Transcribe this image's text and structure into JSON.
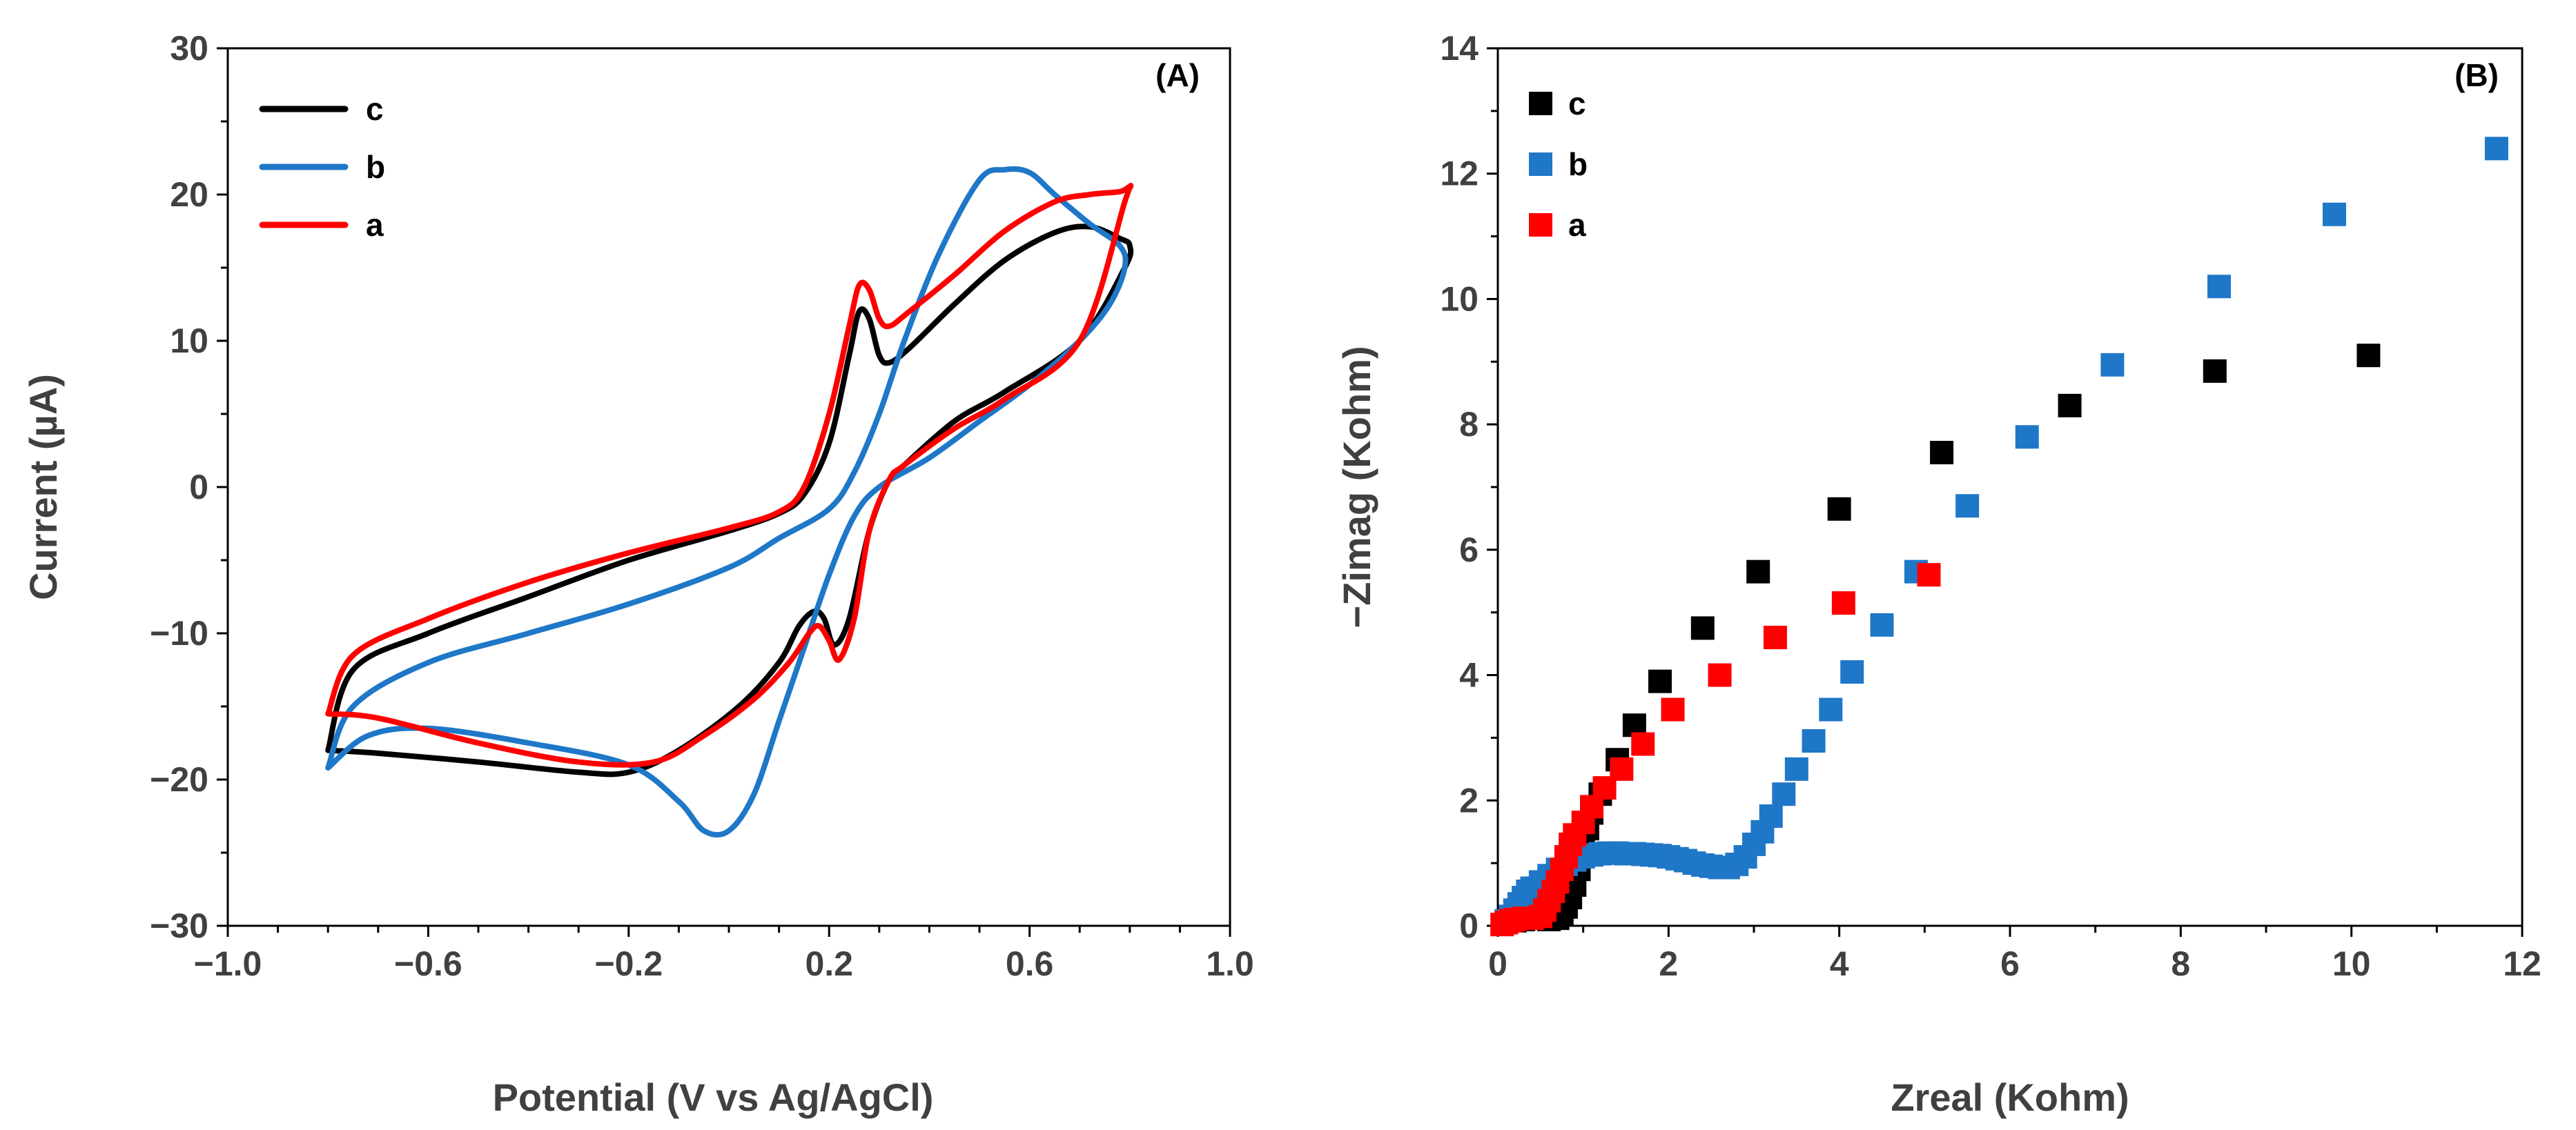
{
  "chart_data": [
    {
      "type": "line",
      "panel_label": "(A)",
      "xlabel": "Potential  (V vs Ag/AgCl)",
      "ylabel": "Current (µA)",
      "xlim": [
        -1.0,
        1.0
      ],
      "ylim": [
        -30,
        30
      ],
      "x_ticks": [
        -1.0,
        -0.6,
        -0.2,
        0.2,
        0.6,
        1.0
      ],
      "x_tick_labels": [
        "−1.0",
        "−0.6",
        "−0.2",
        "0.2",
        "0.6",
        "1.0"
      ],
      "y_ticks": [
        -30,
        -20,
        -10,
        0,
        10,
        20,
        30
      ],
      "y_tick_labels": [
        "−30",
        "−20",
        "−10",
        "0",
        "10",
        "20",
        "30"
      ],
      "grid": false,
      "legend": "top-left",
      "series": [
        {
          "name": "c",
          "color": "#000000",
          "closed": true,
          "points": [
            [
              -0.8,
              -18
            ],
            [
              -0.75,
              -12.5
            ],
            [
              -0.6,
              -10
            ],
            [
              -0.4,
              -7.5
            ],
            [
              -0.2,
              -5
            ],
            [
              0,
              -3
            ],
            [
              0.1,
              -1.8
            ],
            [
              0.15,
              -0.5
            ],
            [
              0.2,
              3
            ],
            [
              0.24,
              9
            ],
            [
              0.26,
              12
            ],
            [
              0.28,
              11.5
            ],
            [
              0.3,
              9
            ],
            [
              0.32,
              8.5
            ],
            [
              0.36,
              9.5
            ],
            [
              0.45,
              12.5
            ],
            [
              0.55,
              15.5
            ],
            [
              0.65,
              17.4
            ],
            [
              0.72,
              17.8
            ],
            [
              0.78,
              17
            ],
            [
              0.8,
              16.5
            ],
            [
              0.79,
              15
            ],
            [
              0.7,
              10
            ],
            [
              0.55,
              6.5
            ],
            [
              0.45,
              4.5
            ],
            [
              0.35,
              1.5
            ],
            [
              0.32,
              0.5
            ],
            [
              0.28,
              -3
            ],
            [
              0.24,
              -9
            ],
            [
              0.21,
              -10.8
            ],
            [
              0.19,
              -9
            ],
            [
              0.17,
              -8.5
            ],
            [
              0.14,
              -9.5
            ],
            [
              0.1,
              -12
            ],
            [
              0.02,
              -15
            ],
            [
              -0.1,
              -18
            ],
            [
              -0.2,
              -19.5
            ],
            [
              -0.3,
              -19.5
            ],
            [
              -0.5,
              -18.8
            ],
            [
              -0.7,
              -18.2
            ],
            [
              -0.8,
              -18
            ]
          ]
        },
        {
          "name": "b",
          "color": "#1f77c8",
          "closed": true,
          "points": [
            [
              -0.8,
              -19.2
            ],
            [
              -0.72,
              -17
            ],
            [
              -0.6,
              -16.5
            ],
            [
              -0.4,
              -17.5
            ],
            [
              -0.2,
              -19
            ],
            [
              -0.1,
              -21.5
            ],
            [
              -0.05,
              -23.5
            ],
            [
              0,
              -23.5
            ],
            [
              0.05,
              -21
            ],
            [
              0.1,
              -16
            ],
            [
              0.15,
              -11
            ],
            [
              0.2,
              -6
            ],
            [
              0.25,
              -2
            ],
            [
              0.3,
              0
            ],
            [
              0.4,
              2
            ],
            [
              0.5,
              4.5
            ],
            [
              0.6,
              7
            ],
            [
              0.7,
              10
            ],
            [
              0.76,
              12.5
            ],
            [
              0.79,
              15
            ],
            [
              0.78,
              16.5
            ],
            [
              0.72,
              18
            ],
            [
              0.65,
              20
            ],
            [
              0.6,
              21.5
            ],
            [
              0.55,
              21.7
            ],
            [
              0.5,
              21
            ],
            [
              0.42,
              16
            ],
            [
              0.35,
              10
            ],
            [
              0.3,
              5
            ],
            [
              0.25,
              1
            ],
            [
              0.2,
              -1.5
            ],
            [
              0.1,
              -3.5
            ],
            [
              0,
              -5.5
            ],
            [
              -0.2,
              -8
            ],
            [
              -0.4,
              -10
            ],
            [
              -0.6,
              -12
            ],
            [
              -0.75,
              -15
            ],
            [
              -0.8,
              -19.2
            ]
          ]
        },
        {
          "name": "a",
          "color": "#ff0000",
          "closed": true,
          "points": [
            [
              -0.8,
              -15.5
            ],
            [
              -0.75,
              -11.5
            ],
            [
              -0.6,
              -9
            ],
            [
              -0.4,
              -6.5
            ],
            [
              -0.2,
              -4.5
            ],
            [
              0,
              -2.8
            ],
            [
              0.1,
              -1.7
            ],
            [
              0.15,
              0
            ],
            [
              0.2,
              5
            ],
            [
              0.24,
              11
            ],
            [
              0.26,
              13.8
            ],
            [
              0.28,
              13.5
            ],
            [
              0.3,
              11.5
            ],
            [
              0.32,
              11
            ],
            [
              0.36,
              12
            ],
            [
              0.45,
              14.5
            ],
            [
              0.55,
              17.5
            ],
            [
              0.65,
              19.5
            ],
            [
              0.72,
              20
            ],
            [
              0.78,
              20.2
            ],
            [
              0.8,
              20.5
            ],
            [
              0.79,
              19.5
            ],
            [
              0.7,
              10
            ],
            [
              0.55,
              6
            ],
            [
              0.45,
              4
            ],
            [
              0.35,
              1.5
            ],
            [
              0.32,
              0.5
            ],
            [
              0.28,
              -3
            ],
            [
              0.25,
              -9
            ],
            [
              0.22,
              -11.8
            ],
            [
              0.2,
              -10.5
            ],
            [
              0.18,
              -9.5
            ],
            [
              0.16,
              -10
            ],
            [
              0.12,
              -12
            ],
            [
              0.05,
              -14.5
            ],
            [
              -0.05,
              -17
            ],
            [
              -0.15,
              -18.8
            ],
            [
              -0.3,
              -18.8
            ],
            [
              -0.5,
              -17.5
            ],
            [
              -0.7,
              -15.8
            ],
            [
              -0.8,
              -15.5
            ]
          ]
        }
      ]
    },
    {
      "type": "scatter",
      "panel_label": "(B)",
      "xlabel": "Zreal (Kohm)",
      "ylabel": "−Zimag (Kohm)",
      "xlim": [
        0,
        12
      ],
      "ylim": [
        0,
        14
      ],
      "x_ticks": [
        0,
        2,
        4,
        6,
        8,
        10,
        12
      ],
      "x_tick_labels": [
        "0",
        "2",
        "4",
        "6",
        "8",
        "10",
        "12"
      ],
      "y_ticks": [
        0,
        2,
        4,
        6,
        8,
        10,
        12,
        14
      ],
      "y_tick_labels": [
        "0",
        "2",
        "4",
        "6",
        "8",
        "10",
        "12",
        "14"
      ],
      "grid": false,
      "legend": "top-left",
      "series": [
        {
          "name": "c",
          "color": "#000000",
          "points": [
            [
              0.1,
              0.05
            ],
            [
              0.2,
              0.08
            ],
            [
              0.3,
              0.1
            ],
            [
              0.4,
              0.12
            ],
            [
              0.5,
              0.12
            ],
            [
              0.6,
              0.1
            ],
            [
              0.7,
              0.12
            ],
            [
              0.75,
              0.2
            ],
            [
              0.8,
              0.3
            ],
            [
              0.85,
              0.45
            ],
            [
              0.9,
              0.65
            ],
            [
              0.95,
              0.9
            ],
            [
              1.0,
              1.2
            ],
            [
              1.05,
              1.55
            ],
            [
              1.1,
              1.8
            ],
            [
              1.2,
              2.1
            ],
            [
              1.4,
              2.65
            ],
            [
              1.6,
              3.2
            ],
            [
              1.9,
              3.9
            ],
            [
              2.4,
              4.75
            ],
            [
              3.05,
              5.65
            ],
            [
              4.0,
              6.65
            ],
            [
              5.2,
              7.55
            ],
            [
              6.7,
              8.3
            ],
            [
              8.4,
              8.85
            ],
            [
              10.2,
              9.1
            ]
          ]
        },
        {
          "name": "b",
          "color": "#1f77c8",
          "points": [
            [
              0.1,
              0.08
            ],
            [
              0.15,
              0.15
            ],
            [
              0.2,
              0.25
            ],
            [
              0.25,
              0.35
            ],
            [
              0.3,
              0.45
            ],
            [
              0.35,
              0.55
            ],
            [
              0.4,
              0.6
            ],
            [
              0.5,
              0.7
            ],
            [
              0.6,
              0.8
            ],
            [
              0.7,
              0.9
            ],
            [
              0.8,
              0.98
            ],
            [
              0.9,
              1.05
            ],
            [
              1.0,
              1.1
            ],
            [
              1.1,
              1.13
            ],
            [
              1.2,
              1.15
            ],
            [
              1.3,
              1.16
            ],
            [
              1.4,
              1.16
            ],
            [
              1.5,
              1.15
            ],
            [
              1.6,
              1.15
            ],
            [
              1.7,
              1.14
            ],
            [
              1.8,
              1.13
            ],
            [
              1.9,
              1.12
            ],
            [
              2.0,
              1.1
            ],
            [
              2.1,
              1.07
            ],
            [
              2.2,
              1.04
            ],
            [
              2.3,
              1.0
            ],
            [
              2.4,
              0.97
            ],
            [
              2.5,
              0.95
            ],
            [
              2.6,
              0.93
            ],
            [
              2.7,
              0.93
            ],
            [
              2.8,
              0.98
            ],
            [
              2.9,
              1.1
            ],
            [
              3.0,
              1.3
            ],
            [
              3.1,
              1.5
            ],
            [
              3.2,
              1.75
            ],
            [
              3.35,
              2.1
            ],
            [
              3.5,
              2.5
            ],
            [
              3.7,
              2.95
            ],
            [
              3.9,
              3.45
            ],
            [
              4.15,
              4.05
            ],
            [
              4.5,
              4.8
            ],
            [
              4.9,
              5.65
            ],
            [
              5.5,
              6.7
            ],
            [
              6.2,
              7.8
            ],
            [
              7.2,
              8.95
            ],
            [
              8.45,
              10.2
            ],
            [
              9.8,
              11.35
            ],
            [
              11.7,
              12.4
            ]
          ]
        },
        {
          "name": "a",
          "color": "#ff0000",
          "points": [
            [
              0.05,
              0.02
            ],
            [
              0.1,
              0.05
            ],
            [
              0.15,
              0.08
            ],
            [
              0.2,
              0.1
            ],
            [
              0.3,
              0.12
            ],
            [
              0.4,
              0.12
            ],
            [
              0.5,
              0.15
            ],
            [
              0.55,
              0.25
            ],
            [
              0.6,
              0.4
            ],
            [
              0.65,
              0.55
            ],
            [
              0.7,
              0.7
            ],
            [
              0.75,
              0.9
            ],
            [
              0.8,
              1.1
            ],
            [
              0.85,
              1.3
            ],
            [
              0.9,
              1.45
            ],
            [
              1.0,
              1.65
            ],
            [
              1.1,
              1.9
            ],
            [
              1.25,
              2.2
            ],
            [
              1.45,
              2.5
            ],
            [
              1.7,
              2.9
            ],
            [
              2.05,
              3.45
            ],
            [
              2.6,
              4.0
            ],
            [
              3.25,
              4.6
            ],
            [
              4.05,
              5.15
            ],
            [
              5.05,
              5.6
            ]
          ]
        }
      ]
    }
  ]
}
